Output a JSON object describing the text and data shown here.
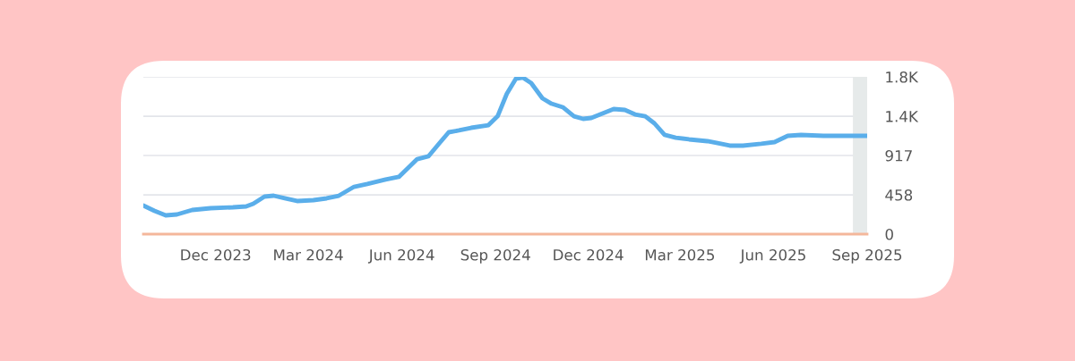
{
  "chart_data": {
    "type": "line",
    "x": [
      "2023-09-21",
      "2023-10-02",
      "2023-10-13",
      "2023-10-24",
      "2023-11-08",
      "2023-11-26",
      "2023-12-18",
      "2023-12-31",
      "2024-01-07",
      "2024-01-18",
      "2024-01-27",
      "2024-02-07",
      "2024-02-19",
      "2024-03-06",
      "2024-03-19",
      "2024-03-31",
      "2024-04-15",
      "2024-04-28",
      "2024-05-16",
      "2024-05-29",
      "2024-06-07",
      "2024-06-16",
      "2024-06-27",
      "2024-07-08",
      "2024-07-17",
      "2024-07-27",
      "2024-08-08",
      "2024-08-25",
      "2024-09-03",
      "2024-09-12",
      "2024-09-21",
      "2024-09-28",
      "2024-10-06",
      "2024-10-17",
      "2024-10-26",
      "2024-11-06",
      "2024-11-17",
      "2024-11-26",
      "2024-12-04",
      "2024-12-15",
      "2024-12-26",
      "2025-01-06",
      "2025-01-16",
      "2025-01-26",
      "2025-02-04",
      "2025-02-14",
      "2025-02-25",
      "2025-03-10",
      "2025-03-28",
      "2025-04-06",
      "2025-04-19",
      "2025-05-02",
      "2025-05-20",
      "2025-06-02",
      "2025-06-15",
      "2025-06-28",
      "2025-07-20",
      "2025-09-01"
    ],
    "series": [
      {
        "color": "#5aaeea",
        "values": [
          333,
          271,
          219,
          229,
          281,
          302,
          313,
          323,
          354,
          438,
          448,
          417,
          386,
          396,
          417,
          448,
          552,
          584,
          636,
          667,
          771,
          875,
          907,
          1063,
          1188,
          1209,
          1240,
          1271,
          1375,
          1636,
          1813,
          1824,
          1761,
          1584,
          1521,
          1480,
          1375,
          1344,
          1355,
          1407,
          1459,
          1448,
          1396,
          1375,
          1292,
          1157,
          1125,
          1105,
          1084,
          1063,
          1032,
          1032,
          1053,
          1073,
          1146,
          1157,
          1146,
          1146
        ]
      }
    ],
    "xlim": [
      "2023-09-21",
      "2025-09-01"
    ],
    "xticks": [
      {
        "value": "2023-12-01",
        "label": "Dec 2023"
      },
      {
        "value": "2024-03-01",
        "label": "Mar 2024"
      },
      {
        "value": "2024-06-01",
        "label": "Jun 2024"
      },
      {
        "value": "2024-09-01",
        "label": "Sep 2024"
      },
      {
        "value": "2024-12-01",
        "label": "Dec 2024"
      },
      {
        "value": "2025-03-01",
        "label": "Mar 2025"
      },
      {
        "value": "2025-06-01",
        "label": "Jun 2025"
      },
      {
        "value": "2025-09-01",
        "label": "Sep 2025"
      }
    ],
    "ylim": [
      0,
      1834
    ],
    "yticks": [
      0,
      458,
      917,
      {
        "value": 1375,
        "label": "1.4K"
      },
      {
        "value": 1834,
        "label": "1.8K"
      }
    ],
    "bands": [
      {
        "axis": "x",
        "from": "2025-08-18",
        "to": "2025-09-01",
        "color": "#e6eaea"
      }
    ],
    "grid": "y",
    "marker": "none",
    "line_style": "solid"
  }
}
